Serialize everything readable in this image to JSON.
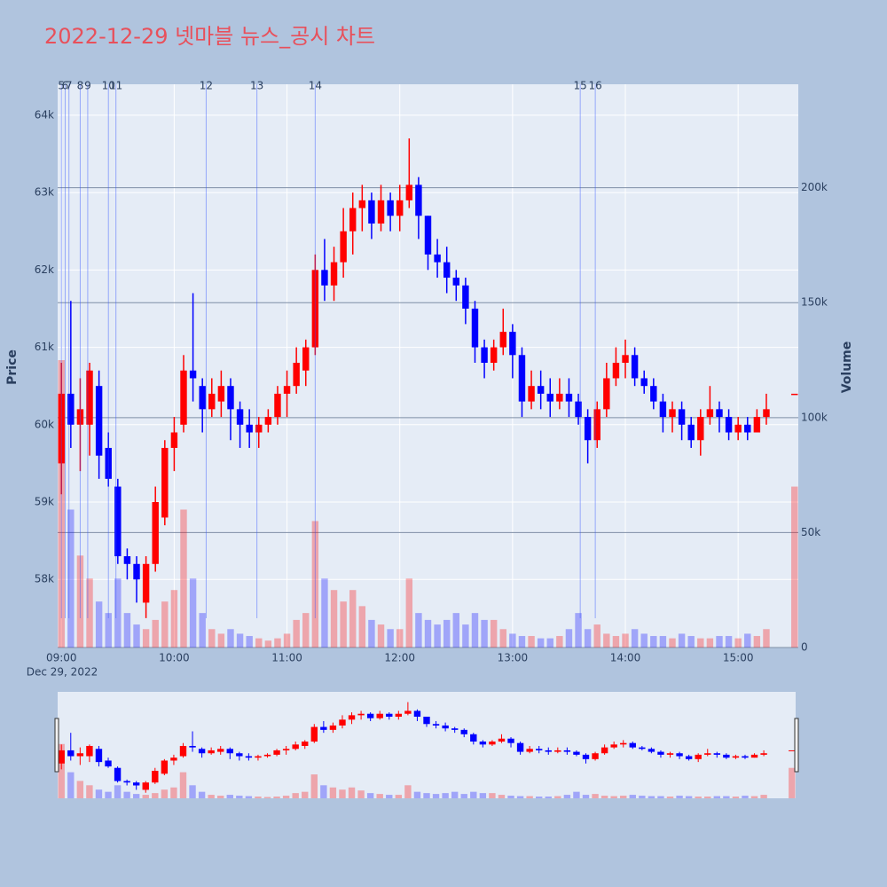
{
  "chart_data": {
    "type": "candlestick",
    "title": "2022-12-29 넷마블 뉴스_공시 차트",
    "date_label": "Dec 29, 2022",
    "ylabel": "Price",
    "y2label": "Volume",
    "increasing_color": "#ff0000",
    "decreasing_color": "#0000ff",
    "x": [
      "09:00",
      "09:05",
      "09:10",
      "09:15",
      "09:20",
      "09:25",
      "09:30",
      "09:35",
      "09:40",
      "09:45",
      "09:50",
      "09:55",
      "10:00",
      "10:05",
      "10:10",
      "10:15",
      "10:20",
      "10:25",
      "10:30",
      "10:35",
      "10:40",
      "10:45",
      "10:50",
      "10:55",
      "11:00",
      "11:05",
      "11:10",
      "11:15",
      "11:20",
      "11:25",
      "11:30",
      "11:35",
      "11:40",
      "11:45",
      "11:50",
      "11:55",
      "12:00",
      "12:05",
      "12:10",
      "12:15",
      "12:20",
      "12:25",
      "12:30",
      "12:35",
      "12:40",
      "12:45",
      "12:50",
      "12:55",
      "13:00",
      "13:05",
      "13:10",
      "13:15",
      "13:20",
      "13:25",
      "13:30",
      "13:35",
      "13:40",
      "13:45",
      "13:50",
      "13:55",
      "14:00",
      "14:05",
      "14:10",
      "14:15",
      "14:20",
      "14:25",
      "14:30",
      "14:35",
      "14:40",
      "14:45",
      "14:50",
      "14:55",
      "15:00",
      "15:05",
      "15:10",
      "15:15",
      "15:30"
    ],
    "open": [
      59500,
      60400,
      60000,
      60000,
      60500,
      59700,
      59200,
      58300,
      58200,
      57700,
      58200,
      58800,
      59700,
      60000,
      60700,
      60500,
      60200,
      60300,
      60500,
      60200,
      60000,
      59900,
      60000,
      60100,
      60400,
      60500,
      60700,
      61000,
      62000,
      61800,
      62100,
      62500,
      62800,
      62900,
      62600,
      62900,
      62700,
      62900,
      63100,
      62700,
      62200,
      62100,
      61900,
      61800,
      61500,
      61000,
      60800,
      61000,
      61200,
      60900,
      60300,
      60500,
      60400,
      60300,
      60400,
      60300,
      60100,
      59800,
      60200,
      60600,
      60800,
      60900,
      60600,
      60500,
      60300,
      60100,
      60200,
      60000,
      59800,
      60100,
      60200,
      60100,
      59900,
      60000,
      59900,
      60100,
      60400
    ],
    "high": [
      60800,
      61600,
      60600,
      60800,
      60700,
      59900,
      59300,
      58400,
      58300,
      58300,
      59200,
      59800,
      60100,
      60900,
      61700,
      60600,
      60600,
      60700,
      60600,
      60300,
      60200,
      60100,
      60200,
      60500,
      60700,
      61000,
      61100,
      62200,
      62400,
      62300,
      62800,
      63000,
      63100,
      63000,
      63100,
      63000,
      63100,
      63700,
      63200,
      62700,
      62400,
      62300,
      62000,
      61900,
      61600,
      61100,
      61100,
      61500,
      61300,
      61000,
      60700,
      60700,
      60600,
      60600,
      60600,
      60400,
      60200,
      60300,
      60800,
      61000,
      61100,
      61000,
      60700,
      60600,
      60400,
      60300,
      60300,
      60100,
      60200,
      60500,
      60300,
      60200,
      60100,
      60100,
      60200,
      60400,
      60400
    ],
    "low": [
      59100,
      59700,
      59400,
      59600,
      59300,
      59200,
      58200,
      58000,
      57700,
      57500,
      58100,
      58700,
      59400,
      59900,
      60300,
      59900,
      60100,
      60100,
      59800,
      59700,
      59700,
      59700,
      59900,
      60000,
      60100,
      60400,
      60500,
      60900,
      61600,
      61600,
      61900,
      62200,
      62500,
      62400,
      62500,
      62500,
      62500,
      62800,
      62400,
      62000,
      61900,
      61700,
      61600,
      61300,
      60800,
      60600,
      60700,
      60900,
      60600,
      60100,
      60200,
      60200,
      60100,
      60200,
      60100,
      60000,
      59500,
      59700,
      60100,
      60500,
      60600,
      60500,
      60400,
      60200,
      59900,
      59900,
      59800,
      59700,
      59600,
      60000,
      59900,
      59800,
      59800,
      59800,
      59900,
      60000,
      60400
    ],
    "close": [
      60400,
      60000,
      60200,
      60700,
      59600,
      59300,
      58300,
      58200,
      58000,
      58200,
      59000,
      59700,
      59900,
      60700,
      60600,
      60200,
      60400,
      60500,
      60200,
      60000,
      59900,
      60000,
      60100,
      60400,
      60500,
      60800,
      61000,
      62000,
      61800,
      62100,
      62500,
      62800,
      62900,
      62600,
      62900,
      62700,
      62900,
      63100,
      62700,
      62200,
      62100,
      61900,
      61800,
      61500,
      61000,
      60800,
      61000,
      61200,
      60900,
      60300,
      60500,
      60400,
      60300,
      60400,
      60300,
      60100,
      59800,
      60200,
      60600,
      60800,
      60900,
      60600,
      60500,
      60300,
      60100,
      60200,
      60000,
      59800,
      60100,
      60200,
      60100,
      59900,
      60000,
      59900,
      60100,
      60200,
      60400
    ],
    "volume": [
      125000,
      60000,
      40000,
      30000,
      20000,
      15000,
      30000,
      15000,
      10000,
      8000,
      12000,
      20000,
      25000,
      60000,
      30000,
      15000,
      8000,
      6000,
      8000,
      6000,
      5000,
      4000,
      3000,
      4000,
      6000,
      12000,
      15000,
      55000,
      30000,
      25000,
      20000,
      25000,
      18000,
      12000,
      10000,
      8000,
      8000,
      30000,
      15000,
      12000,
      10000,
      12000,
      15000,
      10000,
      15000,
      12000,
      12000,
      8000,
      6000,
      5000,
      5000,
      4000,
      4000,
      5000,
      8000,
      15000,
      8000,
      10000,
      6000,
      5000,
      6000,
      8000,
      6000,
      5000,
      5000,
      4000,
      6000,
      5000,
      4000,
      4000,
      5000,
      5000,
      4000,
      6000,
      5000,
      8000,
      70000
    ],
    "xlim": [
      "08:58",
      "15:32"
    ],
    "xticks": [
      "09:00",
      "10:00",
      "11:00",
      "12:00",
      "13:00",
      "14:00",
      "15:00"
    ],
    "ylim": [
      57120,
      64400
    ],
    "yticks": [
      {
        "value": 58000,
        "label": "58k"
      },
      {
        "value": 59000,
        "label": "59k"
      },
      {
        "value": 60000,
        "label": "60k"
      },
      {
        "value": 61000,
        "label": "61k"
      },
      {
        "value": 62000,
        "label": "62k"
      },
      {
        "value": 63000,
        "label": "63k"
      },
      {
        "value": 64000,
        "label": "64k"
      }
    ],
    "y2lim": [
      0,
      245000
    ],
    "y2ticks": [
      0,
      {
        "value": 50000,
        "label": "50k"
      },
      {
        "value": 100000,
        "label": "100k"
      },
      {
        "value": 150000,
        "label": "150k"
      },
      {
        "value": 200000,
        "label": "200k"
      }
    ],
    "news": [
      {
        "label": "5",
        "x": "09:00"
      },
      {
        "label": "6",
        "x": "09:02"
      },
      {
        "label": "7",
        "x": "09:04"
      },
      {
        "label": "8",
        "x": "09:10"
      },
      {
        "label": "9",
        "x": "09:14"
      },
      {
        "label": "10",
        "x": "09:25"
      },
      {
        "label": "11",
        "x": "09:29"
      },
      {
        "label": "12",
        "x": "10:17"
      },
      {
        "label": "13",
        "x": "10:44"
      },
      {
        "label": "14",
        "x": "11:15"
      },
      {
        "label": "15",
        "x": "13:36"
      },
      {
        "label": "16",
        "x": "13:44"
      }
    ],
    "rangeslider": true
  }
}
